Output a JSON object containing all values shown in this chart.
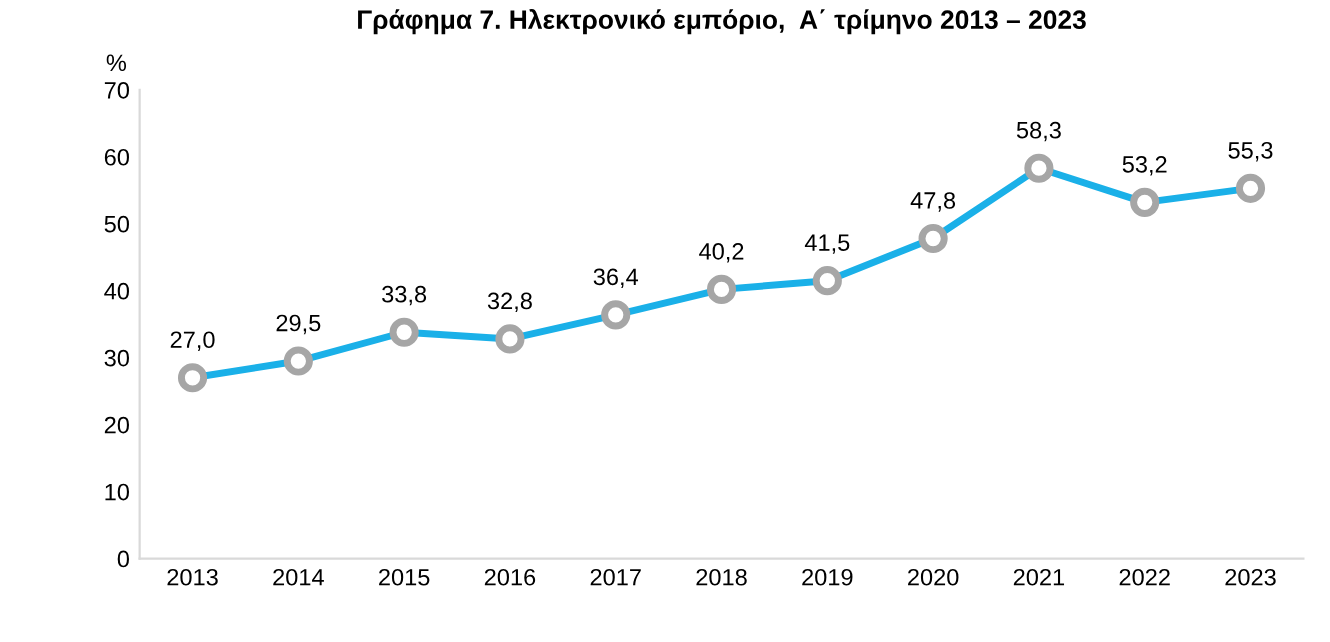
{
  "chart_data": {
    "type": "line",
    "title": "Γράφημα 7. Ηλεκτρονικό εμπόριο,  Α΄ τρίμηνο 2013 – 2023",
    "ylabel": "%",
    "categories": [
      "2013",
      "2014",
      "2015",
      "2016",
      "2017",
      "2018",
      "2019",
      "2020",
      "2021",
      "2022",
      "2023"
    ],
    "series": [
      {
        "color": "#1ab0e8",
        "values": [
          27.0,
          29.5,
          33.8,
          32.8,
          36.4,
          40.2,
          41.5,
          47.8,
          58.3,
          53.2,
          55.3
        ],
        "value_labels": [
          "27,0",
          "29,5",
          "33,8",
          "32,8",
          "36,4",
          "40,2",
          "41,5",
          "47,8",
          "58,3",
          "53,2",
          "55,3"
        ]
      }
    ],
    "ylim": [
      0,
      70
    ],
    "yticks": [
      0,
      10,
      20,
      30,
      40,
      50,
      60,
      70
    ],
    "grid": false,
    "legend": false,
    "marker": "circle",
    "line_style": "solid"
  }
}
